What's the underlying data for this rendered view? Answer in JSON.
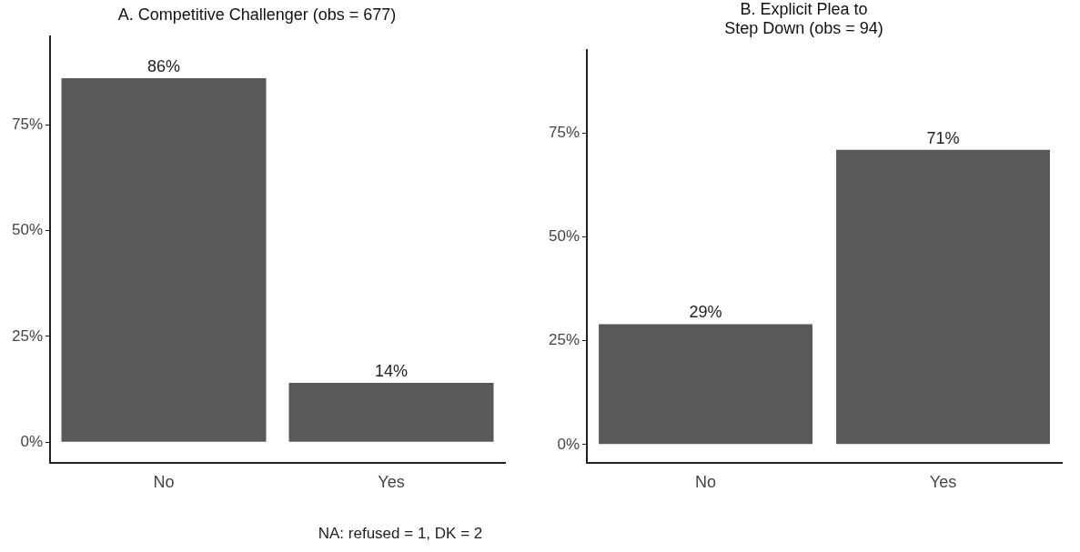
{
  "chart_data": [
    {
      "type": "bar",
      "title": "A. Competitive Challenger (obs = 677)",
      "categories": [
        "No",
        "Yes"
      ],
      "values": [
        86,
        14
      ],
      "color": "#595959",
      "value_labels": [
        "86%",
        "14%"
      ],
      "ylim": [
        -5,
        96
      ],
      "yticks": [
        {
          "value": 0,
          "label": "0%"
        },
        {
          "value": 25,
          "label": "25%"
        },
        {
          "value": 50,
          "label": "50%"
        },
        {
          "value": 75,
          "label": "75%"
        }
      ],
      "annotations": [
        "NA: refused = 1, DK = 2"
      ]
    },
    {
      "type": "bar",
      "title": "B. Explicit Plea to\nStep Down (obs = 94)",
      "categories": [
        "No",
        "Yes"
      ],
      "values": [
        29,
        71
      ],
      "color": "#595959",
      "value_labels": [
        "29%",
        "71%"
      ],
      "ylim": [
        -4.5,
        95
      ],
      "yticks": [
        {
          "value": 0,
          "label": "0%"
        },
        {
          "value": 25,
          "label": "25%"
        },
        {
          "value": 50,
          "label": "50%"
        },
        {
          "value": 75,
          "label": "75%"
        }
      ]
    }
  ]
}
